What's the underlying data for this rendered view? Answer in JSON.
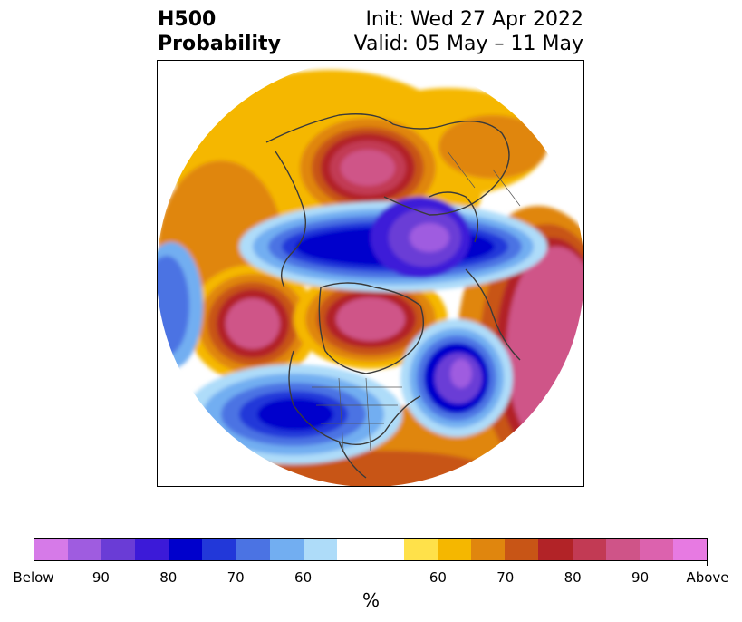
{
  "title": {
    "left_line1": "H500",
    "left_line2": "Probability",
    "right_line1": "Init: Wed 27 Apr 2022",
    "right_line2": "Valid: 05 May – 11 May"
  },
  "colorbar": {
    "colors": [
      "#d67ae8",
      "#9f5ce0",
      "#6a3cd6",
      "#3c1ad8",
      "#0000cc",
      "#2238d9",
      "#4b73e3",
      "#72aef1",
      "#aedcf9",
      "#ffffff",
      "#ffe14a",
      "#f5b700",
      "#e0860e",
      "#c85516",
      "#b22327",
      "#c23a54",
      "#cf5488",
      "#dc62ae",
      "#e77ae2"
    ],
    "tick_labels": [
      "Below",
      "90",
      "80",
      "70",
      "60",
      "60",
      "70",
      "80",
      "90",
      "Above"
    ],
    "units": "%"
  }
}
